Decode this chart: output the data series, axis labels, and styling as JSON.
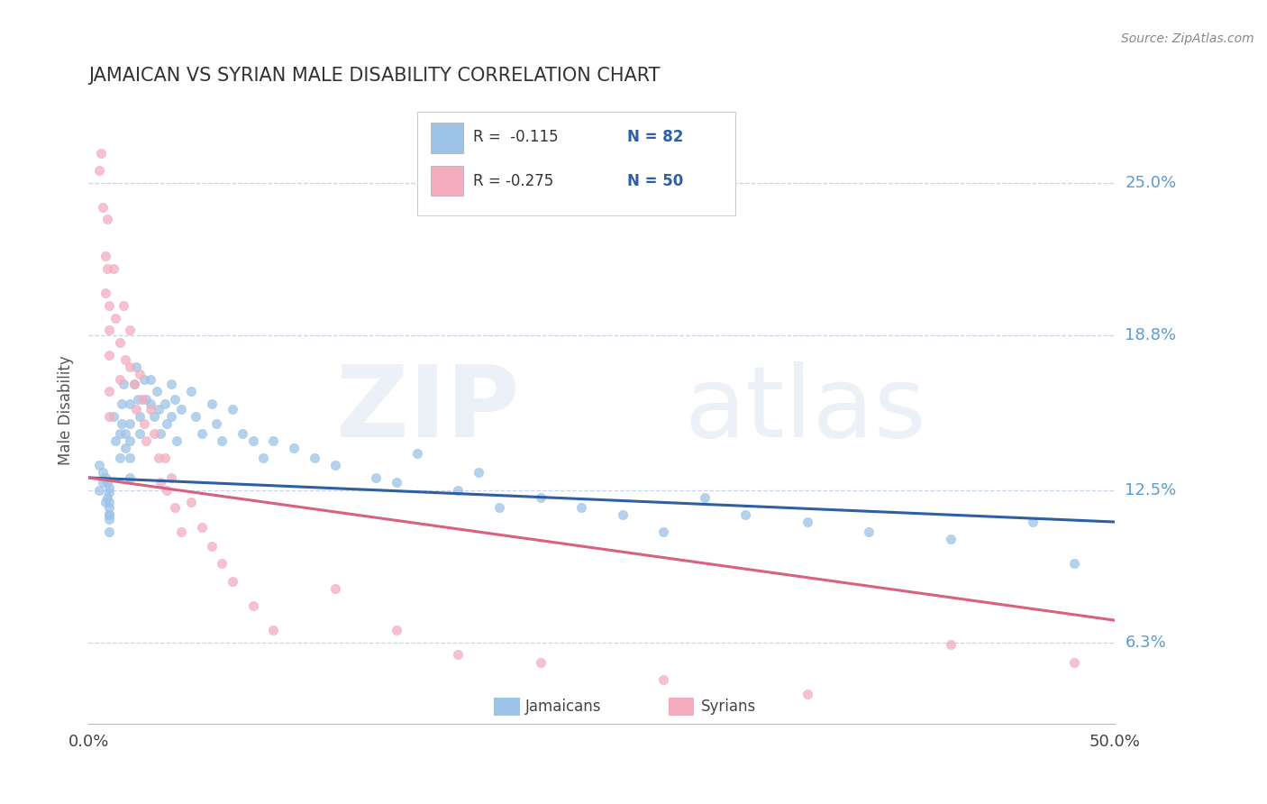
{
  "title": "JAMAICAN VS SYRIAN MALE DISABILITY CORRELATION CHART",
  "source_text": "Source: ZipAtlas.com",
  "ylabel": "Male Disability",
  "xmin": 0.0,
  "xmax": 0.5,
  "ymin": 0.03,
  "ymax": 0.285,
  "yticks": [
    0.063,
    0.125,
    0.188,
    0.25
  ],
  "ytick_labels": [
    "6.3%",
    "12.5%",
    "18.8%",
    "25.0%"
  ],
  "xtick_labels": [
    "0.0%",
    "50.0%"
  ],
  "jamaican_color": "#9dc3e6",
  "syrian_color": "#f4acbe",
  "jamaican_line_color": "#2e5fa3",
  "syrian_line_color": "#d9607e",
  "legend_label_jamaican": "Jamaicans",
  "legend_label_syrian": "Syrians",
  "watermark_zip": "ZIP",
  "watermark_atlas": "atlas",
  "background_color": "#ffffff",
  "grid_color": "#c8d4e8",
  "jamaican_line": {
    "x_start": 0.0,
    "x_end": 0.5,
    "y_start": 0.13,
    "y_end": 0.112
  },
  "syrian_line": {
    "x_start": 0.0,
    "x_end": 0.5,
    "y_start": 0.13,
    "y_end": 0.072
  },
  "jamaican_x": [
    0.005,
    0.005,
    0.007,
    0.007,
    0.008,
    0.008,
    0.009,
    0.009,
    0.01,
    0.01,
    0.01,
    0.01,
    0.01,
    0.01,
    0.01,
    0.01,
    0.012,
    0.013,
    0.015,
    0.015,
    0.016,
    0.016,
    0.017,
    0.018,
    0.018,
    0.02,
    0.02,
    0.02,
    0.02,
    0.02,
    0.022,
    0.023,
    0.024,
    0.025,
    0.025,
    0.027,
    0.028,
    0.03,
    0.03,
    0.032,
    0.033,
    0.034,
    0.035,
    0.037,
    0.038,
    0.04,
    0.04,
    0.042,
    0.043,
    0.045,
    0.05,
    0.052,
    0.055,
    0.06,
    0.062,
    0.065,
    0.07,
    0.075,
    0.08,
    0.085,
    0.09,
    0.1,
    0.11,
    0.12,
    0.14,
    0.15,
    0.16,
    0.18,
    0.19,
    0.2,
    0.22,
    0.24,
    0.26,
    0.28,
    0.3,
    0.32,
    0.35,
    0.38,
    0.42,
    0.46,
    0.48
  ],
  "jamaican_y": [
    0.125,
    0.135,
    0.128,
    0.132,
    0.12,
    0.13,
    0.122,
    0.128,
    0.118,
    0.124,
    0.115,
    0.12,
    0.126,
    0.113,
    0.108,
    0.115,
    0.155,
    0.145,
    0.138,
    0.148,
    0.16,
    0.152,
    0.168,
    0.142,
    0.148,
    0.16,
    0.152,
    0.145,
    0.138,
    0.13,
    0.168,
    0.175,
    0.162,
    0.155,
    0.148,
    0.17,
    0.162,
    0.17,
    0.16,
    0.155,
    0.165,
    0.158,
    0.148,
    0.16,
    0.152,
    0.168,
    0.155,
    0.162,
    0.145,
    0.158,
    0.165,
    0.155,
    0.148,
    0.16,
    0.152,
    0.145,
    0.158,
    0.148,
    0.145,
    0.138,
    0.145,
    0.142,
    0.138,
    0.135,
    0.13,
    0.128,
    0.14,
    0.125,
    0.132,
    0.118,
    0.122,
    0.118,
    0.115,
    0.108,
    0.122,
    0.115,
    0.112,
    0.108,
    0.105,
    0.112,
    0.095
  ],
  "syrian_x": [
    0.005,
    0.006,
    0.007,
    0.008,
    0.008,
    0.009,
    0.009,
    0.01,
    0.01,
    0.01,
    0.01,
    0.01,
    0.012,
    0.013,
    0.015,
    0.015,
    0.017,
    0.018,
    0.02,
    0.02,
    0.022,
    0.023,
    0.025,
    0.026,
    0.027,
    0.028,
    0.03,
    0.032,
    0.034,
    0.035,
    0.037,
    0.038,
    0.04,
    0.042,
    0.045,
    0.05,
    0.055,
    0.06,
    0.065,
    0.07,
    0.08,
    0.09,
    0.12,
    0.15,
    0.18,
    0.22,
    0.28,
    0.35,
    0.42,
    0.48
  ],
  "syrian_y": [
    0.255,
    0.262,
    0.24,
    0.22,
    0.205,
    0.235,
    0.215,
    0.2,
    0.19,
    0.18,
    0.165,
    0.155,
    0.215,
    0.195,
    0.185,
    0.17,
    0.2,
    0.178,
    0.19,
    0.175,
    0.168,
    0.158,
    0.172,
    0.162,
    0.152,
    0.145,
    0.158,
    0.148,
    0.138,
    0.128,
    0.138,
    0.125,
    0.13,
    0.118,
    0.108,
    0.12,
    0.11,
    0.102,
    0.095,
    0.088,
    0.078,
    0.068,
    0.085,
    0.068,
    0.058,
    0.055,
    0.048,
    0.042,
    0.062,
    0.055
  ]
}
